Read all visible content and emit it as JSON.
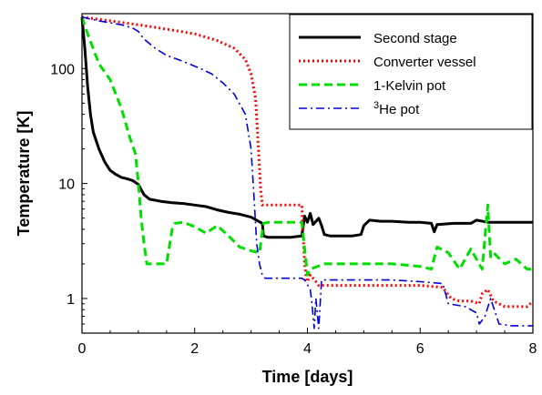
{
  "chart_data": {
    "type": "line",
    "xlabel": "Time [days]",
    "ylabel": "Temperature [K]",
    "xlim": [
      0,
      8
    ],
    "ylim": [
      0.5,
      300
    ],
    "yscale": "log",
    "xticks": [
      0,
      2,
      4,
      6,
      8
    ],
    "xtick_labels": [
      "0",
      "2",
      "4",
      "6",
      "8"
    ],
    "yticks": [
      1,
      10,
      100
    ],
    "ytick_labels": [
      "1",
      "10",
      "100"
    ],
    "grid": false,
    "legend_position": "top-right",
    "series": [
      {
        "name": "Second stage",
        "color": "#000000",
        "dash": "solid",
        "x": [
          0,
          0.05,
          0.1,
          0.15,
          0.2,
          0.3,
          0.4,
          0.5,
          0.6,
          0.7,
          0.8,
          0.9,
          1.0,
          1.1,
          1.2,
          1.4,
          1.6,
          1.8,
          2.0,
          2.2,
          2.4,
          2.6,
          2.8,
          3.0,
          3.2,
          3.22,
          3.3,
          3.5,
          3.7,
          3.9,
          3.95,
          4.0,
          4.05,
          4.1,
          4.2,
          4.25,
          4.3,
          4.4,
          4.6,
          4.8,
          4.95,
          5.0,
          5.1,
          5.3,
          5.5,
          5.8,
          6.0,
          6.2,
          6.25,
          6.3,
          6.6,
          6.9,
          7.0,
          7.2,
          7.5,
          8.0
        ],
        "values": [
          280,
          150,
          70,
          40,
          28,
          20,
          15.5,
          13,
          12,
          11.3,
          11,
          10.6,
          9.8,
          8,
          7.3,
          7.0,
          6.8,
          6.7,
          6.5,
          6.3,
          5.9,
          5.6,
          5.4,
          5.1,
          4.5,
          3.5,
          3.4,
          3.4,
          3.4,
          3.5,
          5.2,
          4.6,
          5.5,
          4.4,
          5.0,
          4.3,
          3.6,
          3.5,
          3.5,
          3.5,
          3.6,
          4.3,
          4.8,
          4.7,
          4.7,
          4.6,
          4.6,
          4.5,
          3.8,
          4.4,
          4.5,
          4.5,
          4.8,
          4.6,
          4.6,
          4.6
        ]
      },
      {
        "name": "Converter vessel",
        "color": "#ff0000",
        "dash": "dotted",
        "x": [
          0,
          0.5,
          1.0,
          1.5,
          2.0,
          2.4,
          2.7,
          2.9,
          3.0,
          3.08,
          3.13,
          3.17,
          3.2,
          3.22,
          3.3,
          3.6,
          3.9,
          3.95,
          3.98,
          4.0,
          4.05,
          4.1,
          4.15,
          4.2,
          4.5,
          5.0,
          6.0,
          6.4,
          6.55,
          6.7,
          6.9,
          7.05,
          7.1,
          7.2,
          7.3,
          7.5,
          7.9,
          8.0
        ],
        "values": [
          280,
          260,
          240,
          220,
          200,
          175,
          150,
          120,
          90,
          55,
          20,
          9,
          6.5,
          6.5,
          6.5,
          6.5,
          6.5,
          2.0,
          1.5,
          1.4,
          1.6,
          1.5,
          1.4,
          1.3,
          1.3,
          1.3,
          1.3,
          1.25,
          1.0,
          0.95,
          0.95,
          0.9,
          1.1,
          1.2,
          0.95,
          0.85,
          0.85,
          0.95
        ]
      },
      {
        "name": "1-Kelvin pot",
        "color": "#00dd00",
        "dash": "dashed",
        "x": [
          0,
          0.1,
          0.3,
          0.5,
          0.7,
          0.85,
          0.95,
          1.0,
          1.05,
          1.1,
          1.15,
          1.2,
          1.5,
          1.6,
          1.65,
          1.8,
          2.0,
          2.2,
          2.4,
          2.6,
          2.8,
          3.0,
          3.15,
          3.22,
          3.3,
          3.6,
          3.9,
          4.0,
          4.05,
          4.3,
          4.6,
          5.0,
          5.5,
          6.0,
          6.2,
          6.3,
          6.5,
          6.7,
          6.9,
          7.0,
          7.1,
          7.2,
          7.25,
          7.3,
          7.5,
          7.7,
          7.9,
          8.0
        ],
        "values": [
          280,
          200,
          110,
          80,
          45,
          25,
          18,
          10,
          5,
          3,
          2,
          2,
          2,
          4,
          4.5,
          4.6,
          4.2,
          3.7,
          4.3,
          3.5,
          2.8,
          2.6,
          2.5,
          4.5,
          4.6,
          4.6,
          4.6,
          1.6,
          1.8,
          2.0,
          2.0,
          2.0,
          2.0,
          1.9,
          1.8,
          2.8,
          2.5,
          1.8,
          2.7,
          2.2,
          1.8,
          6.5,
          2.3,
          2.5,
          2.0,
          2.2,
          1.8,
          1.8
        ]
      },
      {
        "name": "He pot",
        "legend_superscript": "3",
        "color": "#0000dd",
        "dash": "dashdot",
        "x": [
          0,
          0.3,
          0.7,
          0.9,
          1.0,
          1.1,
          1.3,
          1.5,
          1.7,
          1.9,
          2.1,
          2.3,
          2.5,
          2.7,
          2.9,
          3.0,
          3.05,
          3.1,
          3.15,
          3.2,
          3.25,
          3.4,
          3.7,
          3.9,
          3.95,
          4.05,
          4.08,
          4.12,
          4.15,
          4.2,
          4.25,
          4.5,
          5.0,
          5.5,
          6.0,
          6.4,
          6.5,
          6.8,
          7.0,
          7.05,
          7.15,
          7.25,
          7.4,
          7.6,
          8.0
        ],
        "values": [
          280,
          260,
          240,
          225,
          210,
          180,
          150,
          130,
          120,
          110,
          100,
          90,
          75,
          60,
          40,
          20,
          8,
          3,
          2,
          1.6,
          1.5,
          1.5,
          1.5,
          1.5,
          1.45,
          1.2,
          0.9,
          0.55,
          1.0,
          0.55,
          1.45,
          1.45,
          1.45,
          1.45,
          1.4,
          1.35,
          0.9,
          0.85,
          0.75,
          0.6,
          0.7,
          1.0,
          0.6,
          0.58,
          0.58
        ]
      }
    ]
  }
}
